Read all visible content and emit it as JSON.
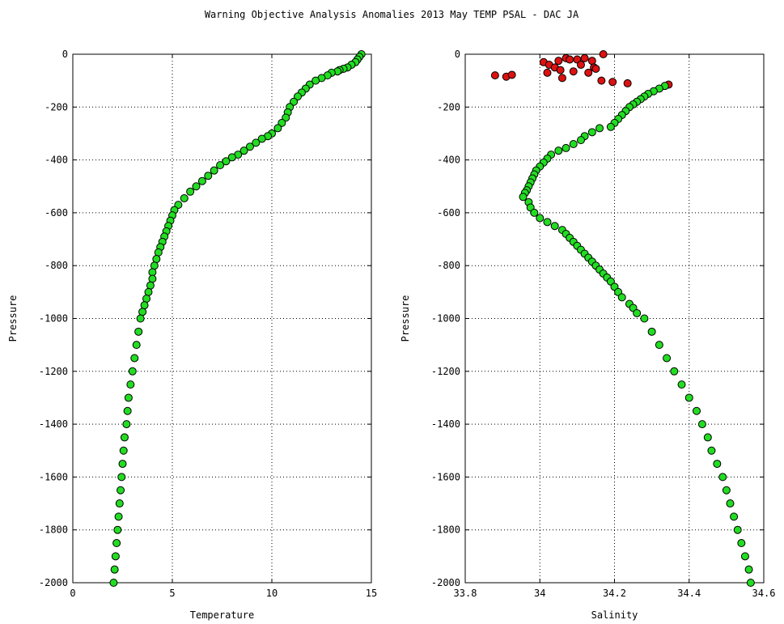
{
  "title": "Warning Objective Analysis Anomalies 2013 May TEMP PSAL - DAC JA",
  "colors": {
    "good": "#22dd22",
    "bad": "#dd1111",
    "outline": "#000000",
    "grid": "#000000"
  },
  "chart_data": [
    {
      "type": "scatter",
      "xlabel": "Temperature",
      "ylabel": "Pressure",
      "xlim": [
        0,
        15
      ],
      "ylim": [
        -2000,
        0
      ],
      "xticks": [
        0,
        5,
        10,
        15
      ],
      "xtick_labels": [
        "0",
        "5",
        "10",
        "15"
      ],
      "yticks": [
        0,
        -200,
        -400,
        -600,
        -800,
        -1000,
        -1200,
        -1400,
        -1600,
        -1800,
        -2000
      ],
      "ytick_labels": [
        "0",
        "-200",
        "-400",
        "-600",
        "-800",
        "-1000",
        "-1200",
        "-1400",
        "-1600",
        "-1800",
        "-2000"
      ],
      "grid": true,
      "series": [
        {
          "color": "#22dd22",
          "points": [
            [
              14.5,
              0
            ],
            [
              14.4,
              -10
            ],
            [
              14.3,
              -20
            ],
            [
              14.2,
              -30
            ],
            [
              14.0,
              -40
            ],
            [
              13.8,
              -50
            ],
            [
              13.6,
              -55
            ],
            [
              13.4,
              -60
            ],
            [
              13.3,
              -65
            ],
            [
              13.0,
              -70
            ],
            [
              12.8,
              -80
            ],
            [
              12.5,
              -90
            ],
            [
              12.2,
              -100
            ],
            [
              11.9,
              -115
            ],
            [
              11.7,
              -130
            ],
            [
              11.5,
              -145
            ],
            [
              11.3,
              -160
            ],
            [
              11.1,
              -180
            ],
            [
              10.9,
              -200
            ],
            [
              10.8,
              -220
            ],
            [
              10.7,
              -240
            ],
            [
              10.5,
              -260
            ],
            [
              10.3,
              -280
            ],
            [
              10.0,
              -300
            ],
            [
              9.8,
              -310
            ],
            [
              9.5,
              -320
            ],
            [
              9.2,
              -335
            ],
            [
              8.9,
              -350
            ],
            [
              8.6,
              -365
            ],
            [
              8.3,
              -380
            ],
            [
              8.0,
              -390
            ],
            [
              7.7,
              -405
            ],
            [
              7.4,
              -420
            ],
            [
              7.1,
              -440
            ],
            [
              6.8,
              -460
            ],
            [
              6.5,
              -480
            ],
            [
              6.2,
              -500
            ],
            [
              5.9,
              -520
            ],
            [
              5.6,
              -545
            ],
            [
              5.3,
              -570
            ],
            [
              5.1,
              -590
            ],
            [
              5.0,
              -610
            ],
            [
              4.9,
              -630
            ],
            [
              4.8,
              -650
            ],
            [
              4.7,
              -670
            ],
            [
              4.6,
              -690
            ],
            [
              4.5,
              -710
            ],
            [
              4.4,
              -730
            ],
            [
              4.3,
              -750
            ],
            [
              4.2,
              -775
            ],
            [
              4.1,
              -800
            ],
            [
              4.0,
              -825
            ],
            [
              4.0,
              -850
            ],
            [
              3.9,
              -875
            ],
            [
              3.8,
              -900
            ],
            [
              3.7,
              -925
            ],
            [
              3.6,
              -950
            ],
            [
              3.5,
              -975
            ],
            [
              3.4,
              -1000
            ],
            [
              3.3,
              -1050
            ],
            [
              3.2,
              -1100
            ],
            [
              3.1,
              -1150
            ],
            [
              3.0,
              -1200
            ],
            [
              2.9,
              -1250
            ],
            [
              2.8,
              -1300
            ],
            [
              2.75,
              -1350
            ],
            [
              2.7,
              -1400
            ],
            [
              2.6,
              -1450
            ],
            [
              2.55,
              -1500
            ],
            [
              2.5,
              -1550
            ],
            [
              2.45,
              -1600
            ],
            [
              2.4,
              -1650
            ],
            [
              2.35,
              -1700
            ],
            [
              2.3,
              -1750
            ],
            [
              2.25,
              -1800
            ],
            [
              2.2,
              -1850
            ],
            [
              2.15,
              -1900
            ],
            [
              2.1,
              -1950
            ],
            [
              2.05,
              -2000
            ]
          ]
        }
      ]
    },
    {
      "type": "scatter",
      "xlabel": "Salinity",
      "ylabel": "Pressure",
      "xlim": [
        33.8,
        34.6
      ],
      "ylim": [
        -2000,
        0
      ],
      "xticks": [
        33.8,
        34.0,
        34.2,
        34.4,
        34.6
      ],
      "xtick_labels": [
        "33.8",
        "34",
        "34.2",
        "34.4",
        "34.6"
      ],
      "yticks": [
        0,
        -200,
        -400,
        -600,
        -800,
        -1000,
        -1200,
        -1400,
        -1600,
        -1800,
        -2000
      ],
      "ytick_labels": [
        "0",
        "-200",
        "-400",
        "-600",
        "-800",
        "-1000",
        "-1200",
        "-1400",
        "-1600",
        "-1800",
        "-2000"
      ],
      "grid": true,
      "series": [
        {
          "color": "#dd1111",
          "points": [
            [
              33.88,
              -80
            ],
            [
              33.91,
              -85
            ],
            [
              33.925,
              -78
            ],
            [
              34.01,
              -30
            ],
            [
              34.02,
              -70
            ],
            [
              34.025,
              -40
            ],
            [
              34.04,
              -50
            ],
            [
              34.05,
              -25
            ],
            [
              34.055,
              -60
            ],
            [
              34.06,
              -90
            ],
            [
              34.07,
              -15
            ],
            [
              34.08,
              -20
            ],
            [
              34.09,
              -65
            ],
            [
              34.1,
              -20
            ],
            [
              34.11,
              -40
            ],
            [
              34.12,
              -15
            ],
            [
              34.13,
              -70
            ],
            [
              34.14,
              -25
            ],
            [
              34.145,
              -50
            ],
            [
              34.15,
              -55
            ],
            [
              34.165,
              -100
            ],
            [
              34.17,
              0
            ],
            [
              34.195,
              -105
            ],
            [
              34.235,
              -110
            ],
            [
              34.345,
              -115
            ]
          ]
        },
        {
          "color": "#22dd22",
          "points": [
            [
              34.335,
              -120
            ],
            [
              34.32,
              -130
            ],
            [
              34.305,
              -140
            ],
            [
              34.29,
              -150
            ],
            [
              34.28,
              -160
            ],
            [
              34.27,
              -170
            ],
            [
              34.26,
              -180
            ],
            [
              34.25,
              -190
            ],
            [
              34.24,
              -200
            ],
            [
              34.23,
              -215
            ],
            [
              34.22,
              -230
            ],
            [
              34.21,
              -245
            ],
            [
              34.2,
              -260
            ],
            [
              34.19,
              -275
            ],
            [
              34.16,
              -280
            ],
            [
              34.14,
              -295
            ],
            [
              34.12,
              -310
            ],
            [
              34.11,
              -325
            ],
            [
              34.09,
              -340
            ],
            [
              34.07,
              -355
            ],
            [
              34.05,
              -365
            ],
            [
              34.03,
              -380
            ],
            [
              34.02,
              -395
            ],
            [
              34.01,
              -410
            ],
            [
              34.0,
              -425
            ],
            [
              33.99,
              -440
            ],
            [
              33.985,
              -455
            ],
            [
              33.98,
              -470
            ],
            [
              33.975,
              -485
            ],
            [
              33.97,
              -500
            ],
            [
              33.965,
              -515
            ],
            [
              33.96,
              -525
            ],
            [
              33.955,
              -540
            ],
            [
              33.97,
              -560
            ],
            [
              33.975,
              -580
            ],
            [
              33.985,
              -600
            ],
            [
              34.0,
              -620
            ],
            [
              34.02,
              -635
            ],
            [
              34.04,
              -650
            ],
            [
              34.06,
              -665
            ],
            [
              34.07,
              -680
            ],
            [
              34.08,
              -695
            ],
            [
              34.09,
              -710
            ],
            [
              34.1,
              -725
            ],
            [
              34.11,
              -740
            ],
            [
              34.12,
              -755
            ],
            [
              34.13,
              -770
            ],
            [
              34.14,
              -785
            ],
            [
              34.15,
              -800
            ],
            [
              34.16,
              -815
            ],
            [
              34.17,
              -830
            ],
            [
              34.18,
              -845
            ],
            [
              34.19,
              -860
            ],
            [
              34.2,
              -880
            ],
            [
              34.21,
              -900
            ],
            [
              34.22,
              -920
            ],
            [
              34.24,
              -945
            ],
            [
              34.25,
              -960
            ],
            [
              34.26,
              -980
            ],
            [
              34.28,
              -1000
            ],
            [
              34.3,
              -1050
            ],
            [
              34.32,
              -1100
            ],
            [
              34.34,
              -1150
            ],
            [
              34.36,
              -1200
            ],
            [
              34.38,
              -1250
            ],
            [
              34.4,
              -1300
            ],
            [
              34.42,
              -1350
            ],
            [
              34.435,
              -1400
            ],
            [
              34.45,
              -1450
            ],
            [
              34.46,
              -1500
            ],
            [
              34.475,
              -1550
            ],
            [
              34.49,
              -1600
            ],
            [
              34.5,
              -1650
            ],
            [
              34.51,
              -1700
            ],
            [
              34.52,
              -1750
            ],
            [
              34.53,
              -1800
            ],
            [
              34.54,
              -1850
            ],
            [
              34.55,
              -1900
            ],
            [
              34.56,
              -1950
            ],
            [
              34.565,
              -2000
            ]
          ]
        }
      ]
    }
  ]
}
